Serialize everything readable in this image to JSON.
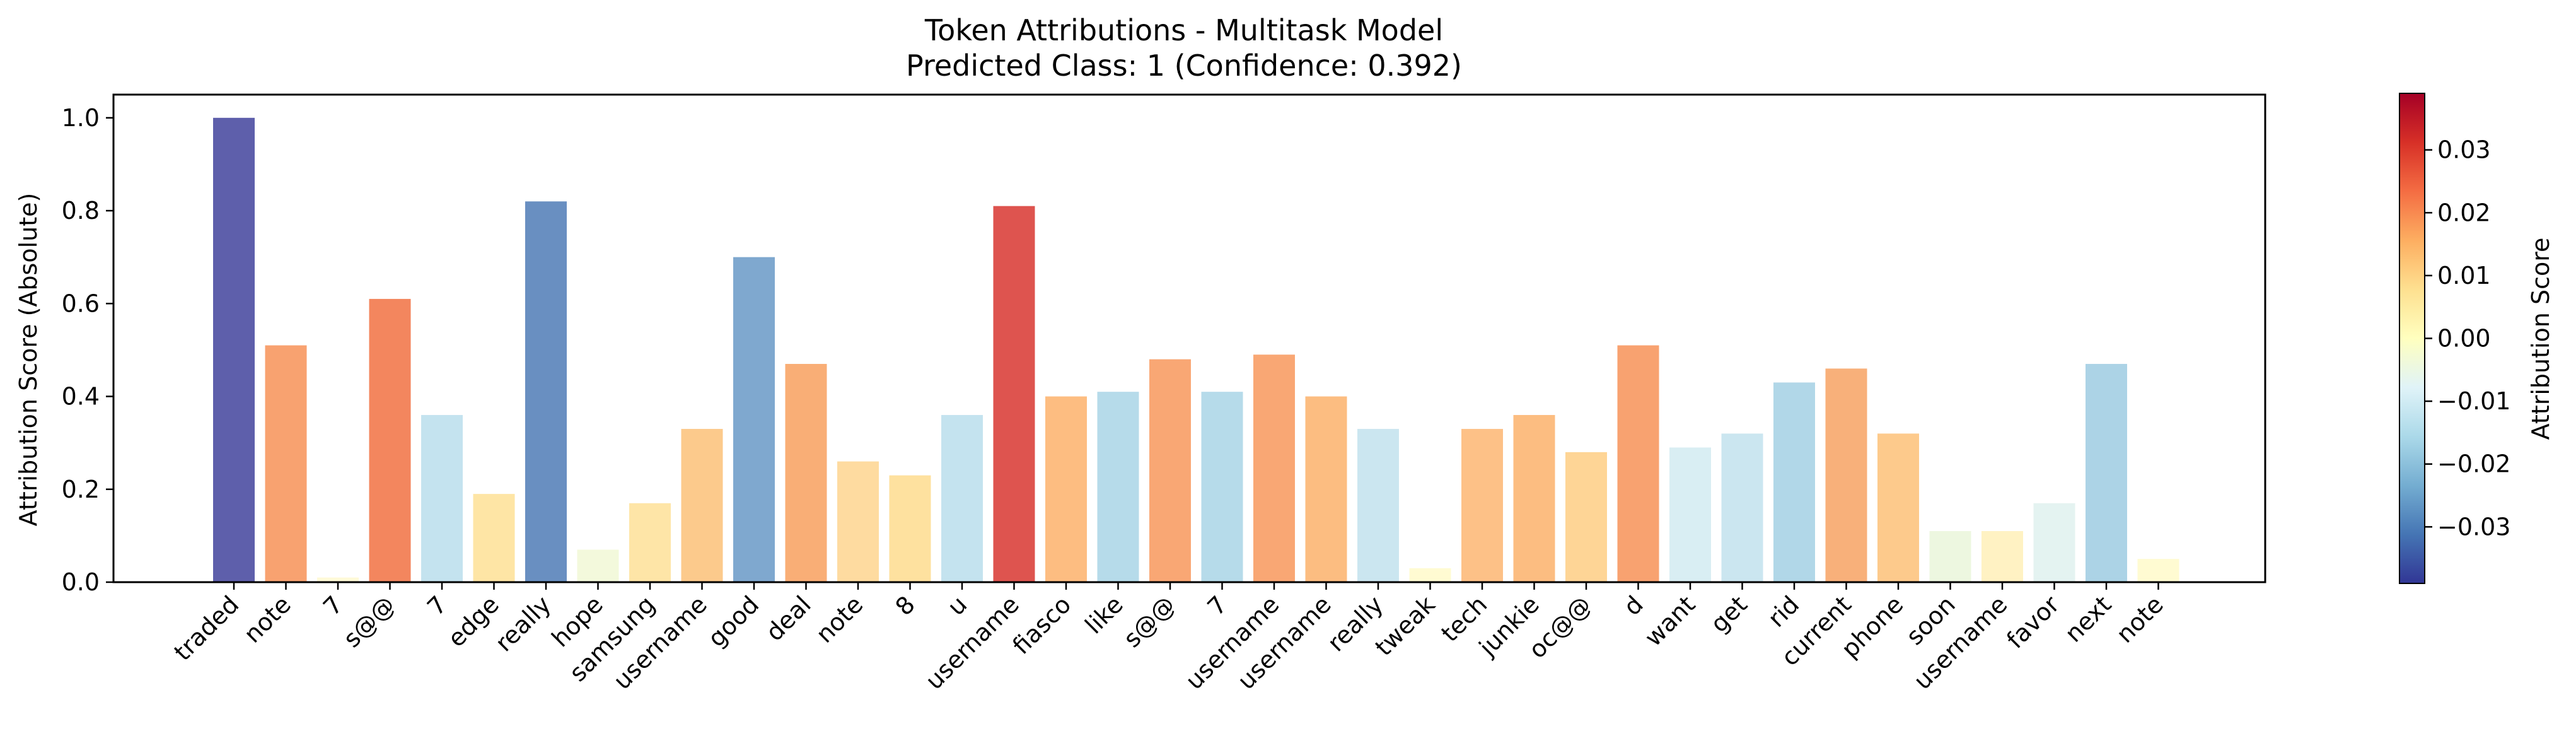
{
  "chart_data": {
    "type": "bar",
    "title": "Token Attributions - Multitask Model",
    "subtitle": "Predicted Class: 1 (Confidence: 0.392)",
    "xlabel": "",
    "ylabel": "Attribution Score (Absolute)",
    "ylim": [
      0,
      1.05
    ],
    "yticks": [
      "0.0",
      "0.2",
      "0.4",
      "0.6",
      "0.8",
      "1.0"
    ],
    "grid": false,
    "categories": [
      "traded",
      "note",
      "7",
      "s@@",
      "7",
      "edge",
      "really",
      "hope",
      "samsung",
      "username",
      "good",
      "deal",
      "note",
      "8",
      "u",
      "username",
      "fiasco",
      "like",
      "s@@",
      "7",
      "username",
      "username",
      "really",
      "tweak",
      "tech",
      "junkie",
      "oc@@",
      "d",
      "want",
      "get",
      "rid",
      "current",
      "phone",
      "soon",
      "username",
      "favor",
      "next",
      "note"
    ],
    "values": [
      1.0,
      0.51,
      0.01,
      0.61,
      0.36,
      0.19,
      0.82,
      0.07,
      0.17,
      0.33,
      0.7,
      0.47,
      0.26,
      0.23,
      0.36,
      0.81,
      0.4,
      0.41,
      0.48,
      0.41,
      0.49,
      0.4,
      0.33,
      0.03,
      0.33,
      0.36,
      0.28,
      0.51,
      0.29,
      0.32,
      0.43,
      0.46,
      0.32,
      0.11,
      0.11,
      0.17,
      0.47,
      0.05
    ],
    "colors": [
      "#5e5fab",
      "#f8a270",
      "#fffad8",
      "#f3865e",
      "#c4e3ef",
      "#fee5a5",
      "#698fc1",
      "#f3f9dc",
      "#fee5a7",
      "#fcca8c",
      "#7fa8cf",
      "#f9ae76",
      "#fedba0",
      "#fee19f",
      "#c4e3ef",
      "#de544f",
      "#fdbd81",
      "#b6dbea",
      "#f9a774",
      "#b6dbea",
      "#f9a774",
      "#fcbd81",
      "#cbe6f0",
      "#fffbd2",
      "#fdc187",
      "#fcbd81",
      "#fed596",
      "#f8a270",
      "#d9eef3",
      "#cbe6f0",
      "#b1d7e8",
      "#f8b07a",
      "#fdca8c",
      "#edf7e0",
      "#fff2c3",
      "#e4f3f1",
      "#acd3e6",
      "#fffbd2"
    ],
    "colorbar": {
      "label": "Attribution Score",
      "ticks": [
        "0.03",
        "0.02",
        "0.01",
        "0.00",
        "−0.01",
        "−0.02",
        "−0.03"
      ],
      "tick_values": [
        0.03,
        0.02,
        0.01,
        0.0,
        -0.01,
        -0.02,
        -0.03
      ],
      "range": [
        -0.039,
        0.039
      ],
      "colormap": "RdYlBu_r"
    }
  }
}
